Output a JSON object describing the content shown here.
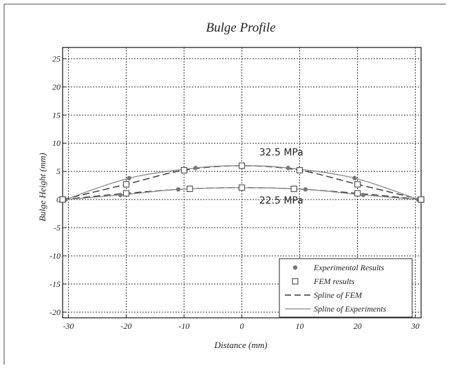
{
  "chart_data": {
    "type": "line",
    "title": "Bulge Profile",
    "xlabel": "Distance (mm)",
    "ylabel": "Bulge Height (mm)",
    "xlim": [
      -31,
      31
    ],
    "ylim": [
      -21,
      27
    ],
    "xticks": [
      -30,
      -20,
      -10,
      0,
      10,
      20,
      30
    ],
    "yticks": [
      -20,
      -15,
      -10,
      -5,
      0,
      5,
      10,
      15,
      20,
      25
    ],
    "grid": true,
    "legend_position": "bottom-right",
    "legend": [
      {
        "label": "Experimental Results",
        "kind": "marker-dot"
      },
      {
        "label": "FEM results",
        "kind": "marker-square"
      },
      {
        "label": "Spline of FEM",
        "kind": "line-dashed"
      },
      {
        "label": "Spline of Experiments",
        "kind": "line-solid"
      }
    ],
    "annotations": [
      {
        "text": "32.5 MPa",
        "x": 3,
        "y": 7.8
      },
      {
        "text": "22.5 MPa",
        "x": 3,
        "y": -0.7
      }
    ],
    "series": [
      {
        "name": "Experimental Results",
        "group": "32.5 MPa",
        "style": "dot",
        "x": [
          -30.5,
          -19.5,
          -8,
          0,
          8,
          19.5,
          30.5
        ],
        "y": [
          0,
          3.8,
          5.6,
          6.0,
          5.6,
          3.8,
          0
        ]
      },
      {
        "name": "FEM results",
        "group": "32.5 MPa",
        "style": "square",
        "x": [
          -31,
          -20,
          -10,
          0,
          10,
          20,
          31
        ],
        "y": [
          0,
          2.7,
          5.2,
          6.0,
          5.2,
          2.7,
          0
        ]
      },
      {
        "name": "Spline of FEM",
        "group": "32.5 MPa",
        "style": "dashed",
        "x": [
          -31,
          -20,
          -10,
          0,
          10,
          20,
          31
        ],
        "y": [
          0,
          2.7,
          5.2,
          6.0,
          5.2,
          2.7,
          0
        ]
      },
      {
        "name": "Spline of Experiments",
        "group": "32.5 MPa",
        "style": "solid",
        "x": [
          -30.5,
          -19.5,
          -8,
          0,
          8,
          19.5,
          30.5
        ],
        "y": [
          0,
          3.8,
          5.6,
          6.0,
          5.6,
          3.8,
          0
        ]
      },
      {
        "name": "Experimental Results",
        "group": "22.5 MPa",
        "style": "dot",
        "x": [
          -30.5,
          -21,
          -11,
          0,
          11,
          21,
          30.5
        ],
        "y": [
          0,
          0.8,
          1.8,
          2.1,
          1.8,
          0.8,
          0
        ]
      },
      {
        "name": "FEM results",
        "group": "22.5 MPa",
        "style": "square",
        "x": [
          -31,
          -20,
          -9,
          0,
          9,
          20,
          31
        ],
        "y": [
          0,
          1.1,
          1.9,
          2.1,
          1.9,
          1.1,
          0
        ]
      },
      {
        "name": "Spline of FEM",
        "group": "22.5 MPa",
        "style": "dashed",
        "x": [
          -31,
          -20,
          -9,
          0,
          9,
          20,
          31
        ],
        "y": [
          0,
          1.1,
          1.9,
          2.1,
          1.9,
          1.1,
          0
        ]
      },
      {
        "name": "Spline of Experiments",
        "group": "22.5 MPa",
        "style": "solid",
        "x": [
          -30.5,
          -21,
          -11,
          0,
          11,
          21,
          30.5
        ],
        "y": [
          0,
          0.8,
          1.8,
          2.1,
          1.8,
          0.8,
          0
        ]
      }
    ]
  }
}
